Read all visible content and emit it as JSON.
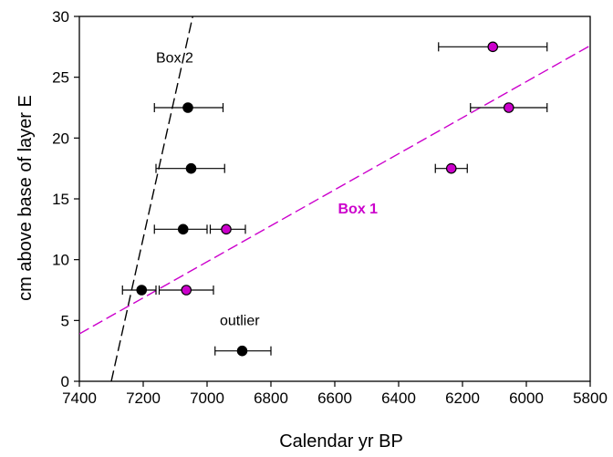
{
  "chart_data": {
    "type": "scatter",
    "title": "",
    "xlabel": "Calendar yr BP",
    "ylabel": "cm above base of layer E",
    "xlim": [
      7400,
      5800
    ],
    "ylim": [
      0,
      30
    ],
    "x_reversed": true,
    "xticks": [
      7400,
      7200,
      7000,
      6800,
      6600,
      6400,
      6200,
      6000,
      5800
    ],
    "yticks": [
      0,
      5,
      10,
      15,
      20,
      25,
      30
    ],
    "grid": false,
    "legend": "none",
    "colors": {
      "box2": "#000000",
      "box1": "#cc00cc",
      "marker_edge": "#000000",
      "errorbar": "#000000"
    },
    "series": [
      {
        "points": [
          {
            "x": 7060,
            "y": 22.5,
            "xerr_low": 7165,
            "xerr_high": 6950
          },
          {
            "x": 7050,
            "y": 17.5,
            "xerr_low": 7160,
            "xerr_high": 6945
          },
          {
            "x": 7075,
            "y": 12.5,
            "xerr_low": 7165,
            "xerr_high": 7000
          },
          {
            "x": 7205,
            "y": 7.5,
            "xerr_low": 7265,
            "xerr_high": 7160
          },
          {
            "x": 6890,
            "y": 2.5,
            "xerr_low": 6975,
            "xerr_high": 6800
          }
        ]
      },
      {
        "points": [
          {
            "x": 6105,
            "y": 27.5,
            "xerr_low": 6275,
            "xerr_high": 5935
          },
          {
            "x": 6055,
            "y": 22.5,
            "xerr_low": 6175,
            "xerr_high": 5935
          },
          {
            "x": 6235,
            "y": 17.5,
            "xerr_low": 6285,
            "xerr_high": 6185
          },
          {
            "x": 6940,
            "y": 12.5,
            "xerr_low": 6990,
            "xerr_high": 6880
          },
          {
            "x": 7065,
            "y": 7.5,
            "xerr_low": 7150,
            "xerr_high": 6980
          }
        ]
      }
    ],
    "trendlines": [
      {
        "x1": 7300,
        "y1": 0,
        "x2": 7045,
        "y2": 30,
        "color_key": "box2",
        "style": "dashed"
      },
      {
        "x1": 7400,
        "y1": 3.9,
        "x2": 5800,
        "y2": 27.6,
        "color_key": "box1",
        "style": "dashed"
      }
    ],
    "annotations": [
      {
        "text": "Box 2",
        "x": 7160,
        "y": 26.2
      },
      {
        "text": "Box 1",
        "x": 6590,
        "y": 13.8
      },
      {
        "text": "outlier",
        "x": 6960,
        "y": 4.6
      }
    ]
  }
}
